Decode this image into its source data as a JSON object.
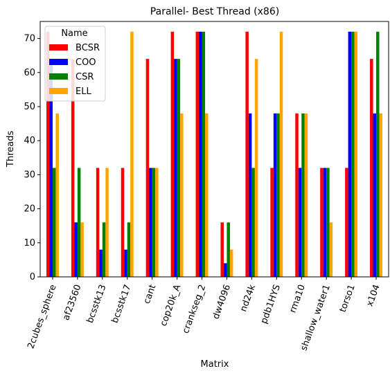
{
  "chart_data": {
    "type": "bar",
    "title": "Parallel- Best Thread (x86)",
    "xlabel": "Matrix",
    "ylabel": "Threads",
    "ylim": [
      0,
      75
    ],
    "yticks": [
      0,
      10,
      20,
      30,
      40,
      50,
      60,
      70
    ],
    "grid": false,
    "legend": {
      "title": "Name",
      "placement": "top-left"
    },
    "categories": [
      "2cubes_sphere",
      "af23560",
      "bcsstk13",
      "bcsstk17",
      "cant",
      "cop20k_A",
      "crankseg_2",
      "dw4096",
      "nd24k",
      "pdb1HYS",
      "rma10",
      "shallow_water1",
      "torso1",
      "x104"
    ],
    "series": [
      {
        "name": "BCSR",
        "color": "#ff0000",
        "values": [
          72,
          64,
          32,
          32,
          64,
          72,
          72,
          16,
          72,
          32,
          48,
          32,
          32,
          64
        ]
      },
      {
        "name": "COO",
        "color": "#0000ff",
        "values": [
          64,
          16,
          8,
          8,
          32,
          64,
          72,
          4,
          48,
          48,
          32,
          32,
          72,
          48
        ]
      },
      {
        "name": "CSR",
        "color": "#008000",
        "values": [
          32,
          32,
          16,
          16,
          32,
          64,
          72,
          16,
          32,
          48,
          48,
          32,
          72,
          72
        ]
      },
      {
        "name": "ELL",
        "color": "#ffa500",
        "values": [
          48,
          16,
          32,
          72,
          32,
          48,
          48,
          8,
          64,
          72,
          48,
          16,
          72,
          48
        ]
      }
    ]
  }
}
